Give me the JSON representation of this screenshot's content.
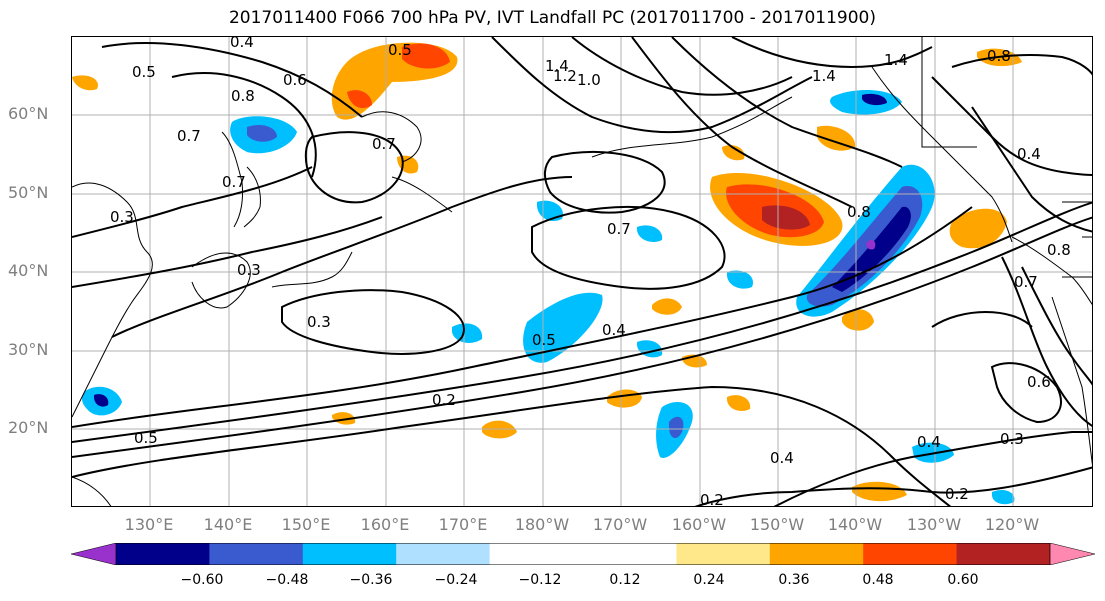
{
  "title": "2017011400 F066 700 hPa PV, IVT Landfall PC (2017011700 - 2017011900)",
  "latitude_labels": [
    "60°N",
    "50°N",
    "40°N",
    "30°N",
    "20°N"
  ],
  "longitude_labels": [
    "130°E",
    "140°E",
    "150°E",
    "160°E",
    "170°E",
    "180°W",
    "170°W",
    "160°W",
    "150°W",
    "140°W",
    "130°W",
    "120°W"
  ],
  "colorbar": {
    "colors": [
      "#9932cc",
      "#00008b",
      "#3a5bd0",
      "#00bfff",
      "#b0e0ff",
      "#ffffff",
      "#ffffff",
      "#ffe88a",
      "#ffa500",
      "#ff4500",
      "#b22222",
      "#ff88b0"
    ],
    "tick_labels": [
      "−0.60",
      "−0.48",
      "−0.36",
      "−0.24",
      "−0.12",
      "0.12",
      "0.24",
      "0.36",
      "0.48",
      "0.60"
    ]
  },
  "contour_labels": [
    "0.4",
    "0.5",
    "1.4",
    "1.2",
    "1.0",
    "1.4",
    "1.4",
    "0.8",
    "0.5",
    "0.6",
    "0.8",
    "0.7",
    "0.7",
    "0.7",
    "0.4",
    "0.3",
    "0.7",
    "0.8",
    "0.3",
    "0.3",
    "0.5",
    "0.4",
    "0.2",
    "0.5",
    "0.4",
    "0.2",
    "0.2",
    "0.4",
    "0.3",
    "0.6",
    "0.7",
    "0.8"
  ]
}
